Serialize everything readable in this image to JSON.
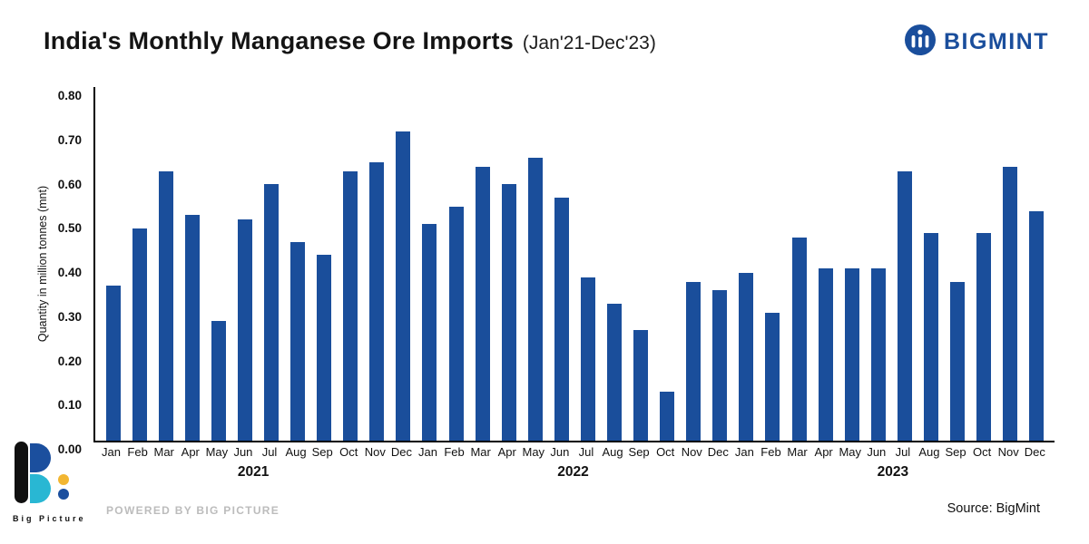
{
  "header": {
    "title": "India's Monthly Manganese Ore Imports",
    "subtitle": "(Jan'21-Dec'23)",
    "brand": "BIGMINT"
  },
  "chart_data": {
    "type": "bar",
    "title": "India's Monthly Manganese Ore Imports (Jan'21-Dec'23)",
    "xlabel": "",
    "ylabel": "Quantity in million tonnes (mnt)",
    "ylim": [
      0,
      0.8
    ],
    "yticks": [
      "0.00",
      "0.10",
      "0.20",
      "0.30",
      "0.40",
      "0.50",
      "0.60",
      "0.70",
      "0.80"
    ],
    "grid": false,
    "legend": false,
    "bar_color": "#1a4e9b",
    "months": [
      "Jan",
      "Feb",
      "Mar",
      "Apr",
      "May",
      "Jun",
      "Jul",
      "Aug",
      "Sep",
      "Oct",
      "Nov",
      "Dec"
    ],
    "series": [
      {
        "name": "2021",
        "values": [
          0.35,
          0.48,
          0.61,
          0.51,
          0.27,
          0.5,
          0.58,
          0.45,
          0.42,
          0.61,
          0.63,
          0.7
        ]
      },
      {
        "name": "2022",
        "values": [
          0.49,
          0.53,
          0.62,
          0.58,
          0.64,
          0.55,
          0.37,
          0.31,
          0.25,
          0.11,
          0.36,
          0.34
        ]
      },
      {
        "name": "2023",
        "values": [
          0.38,
          0.29,
          0.46,
          0.39,
          0.39,
          0.39,
          0.61,
          0.47,
          0.36,
          0.47,
          0.62,
          0.52
        ]
      }
    ]
  },
  "footer": {
    "logo_text": "Big Picture",
    "powered_by": "POWERED BY BIG PICTURE",
    "source": "Source: BigMint"
  }
}
